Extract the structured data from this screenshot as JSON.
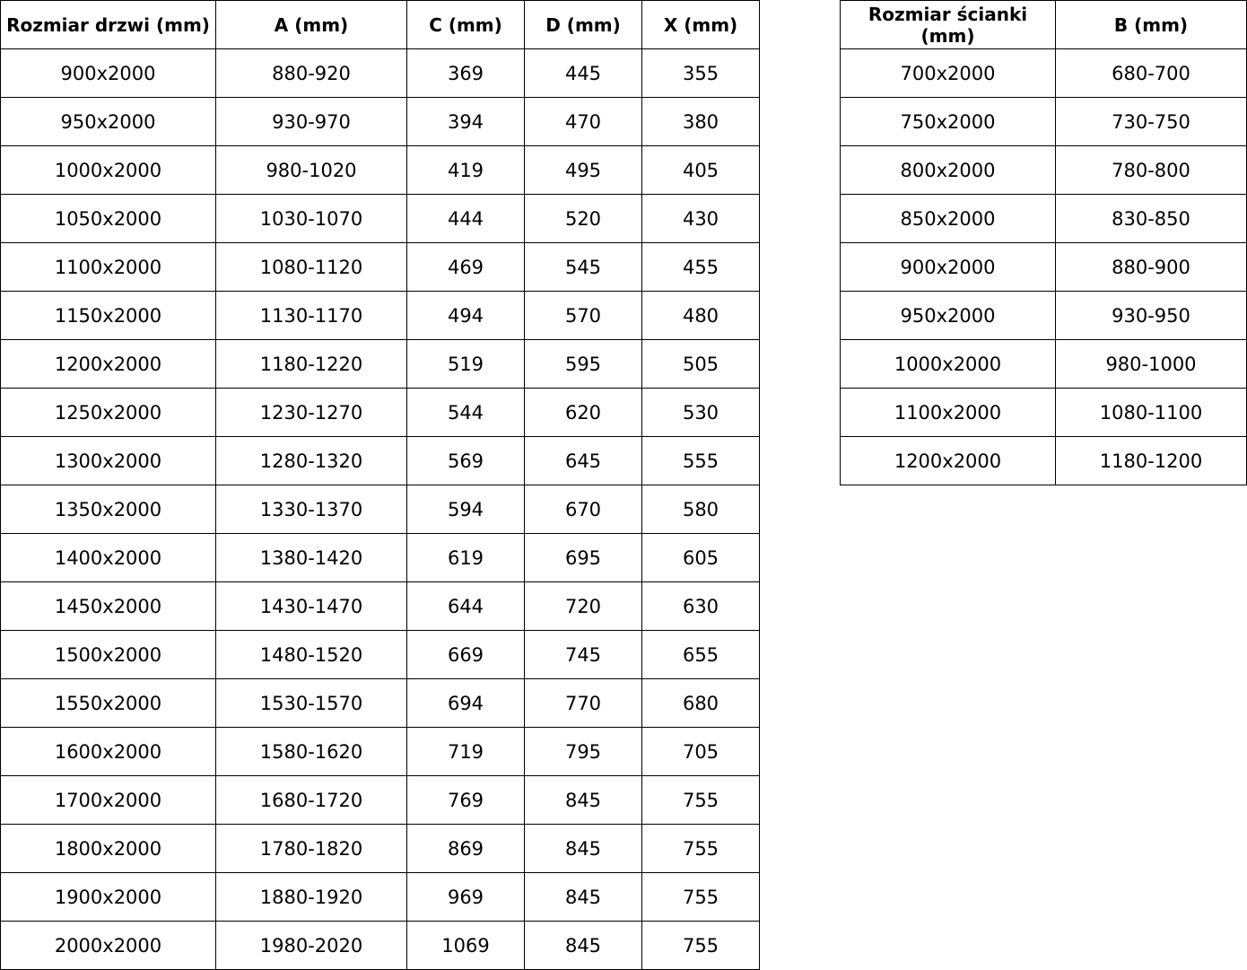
{
  "doors_table": {
    "headers": [
      "Rozmiar drzwi (mm)",
      "A (mm)",
      "C (mm)",
      "D (mm)",
      "X (mm)"
    ],
    "rows": [
      [
        "900x2000",
        "880-920",
        "369",
        "445",
        "355"
      ],
      [
        "950x2000",
        "930-970",
        "394",
        "470",
        "380"
      ],
      [
        "1000x2000",
        "980-1020",
        "419",
        "495",
        "405"
      ],
      [
        "1050x2000",
        "1030-1070",
        "444",
        "520",
        "430"
      ],
      [
        "1100x2000",
        "1080-1120",
        "469",
        "545",
        "455"
      ],
      [
        "1150x2000",
        "1130-1170",
        "494",
        "570",
        "480"
      ],
      [
        "1200x2000",
        "1180-1220",
        "519",
        "595",
        "505"
      ],
      [
        "1250x2000",
        "1230-1270",
        "544",
        "620",
        "530"
      ],
      [
        "1300x2000",
        "1280-1320",
        "569",
        "645",
        "555"
      ],
      [
        "1350x2000",
        "1330-1370",
        "594",
        "670",
        "580"
      ],
      [
        "1400x2000",
        "1380-1420",
        "619",
        "695",
        "605"
      ],
      [
        "1450x2000",
        "1430-1470",
        "644",
        "720",
        "630"
      ],
      [
        "1500x2000",
        "1480-1520",
        "669",
        "745",
        "655"
      ],
      [
        "1550x2000",
        "1530-1570",
        "694",
        "770",
        "680"
      ],
      [
        "1600x2000",
        "1580-1620",
        "719",
        "795",
        "705"
      ],
      [
        "1700x2000",
        "1680-1720",
        "769",
        "845",
        "755"
      ],
      [
        "1800x2000",
        "1780-1820",
        "869",
        "845",
        "755"
      ],
      [
        "1900x2000",
        "1880-1920",
        "969",
        "845",
        "755"
      ],
      [
        "2000x2000",
        "1980-2020",
        "1069",
        "845",
        "755"
      ]
    ]
  },
  "wall_table": {
    "headers": [
      "Rozmiar ścianki (mm)",
      "B (mm)"
    ],
    "rows": [
      [
        "700x2000",
        "680-700"
      ],
      [
        "750x2000",
        "730-750"
      ],
      [
        "800x2000",
        "780-800"
      ],
      [
        "850x2000",
        "830-850"
      ],
      [
        "900x2000",
        "880-900"
      ],
      [
        "950x2000",
        "930-950"
      ],
      [
        "1000x2000",
        "980-1000"
      ],
      [
        "1100x2000",
        "1080-1100"
      ],
      [
        "1200x2000",
        "1180-1200"
      ]
    ]
  }
}
